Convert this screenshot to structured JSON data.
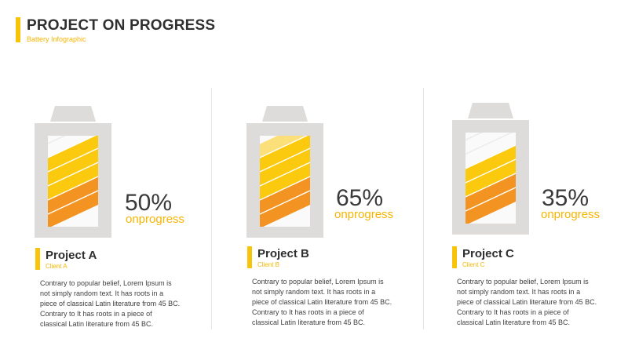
{
  "header": {
    "title": "PROJECT ON PROGRESS",
    "subtitle": "Battery Infographic"
  },
  "colors": {
    "accent": "#f7c40a",
    "accent_text": "#f7b500",
    "fill_orange": "#f39422",
    "fill_yellow": "#fbca0e",
    "fill_light_yellow": "#fbdf78",
    "battery_body": "#dddcda",
    "battery_inner": "#fafafa",
    "stripe": "#ececec"
  },
  "projects": [
    {
      "percent_label": "50%",
      "progress": 0.5,
      "status": "onprogress",
      "name": "Project A",
      "client": "Client A",
      "description": [
        "Contrary to popular belief, Lorem Ipsum is",
        "not simply random text. It has roots in a",
        "piece of classical Latin literature from 45 BC.",
        "Contrary to It has roots in a piece of",
        "classical Latin literature from 45 BC."
      ]
    },
    {
      "percent_label": "65%",
      "progress": 0.65,
      "status": "onprogress",
      "name": "Project B",
      "client": "Client B",
      "description": [
        "Contrary to popular belief, Lorem Ipsum is",
        "not simply random text. It has roots in a",
        "piece of classical Latin literature from 45 BC.",
        "Contrary to It has roots in a piece of",
        "classical Latin literature from 45 BC."
      ]
    },
    {
      "percent_label": "35%",
      "progress": 0.35,
      "status": "onprogress",
      "name": "Project C",
      "client": "Client C",
      "description": [
        "Contrary to popular belief, Lorem Ipsum is",
        "not simply random text. It has roots in a",
        "piece of classical Latin literature from 45 BC.",
        "Contrary to It has roots in a piece of",
        "classical Latin literature from 45 BC."
      ]
    }
  ]
}
